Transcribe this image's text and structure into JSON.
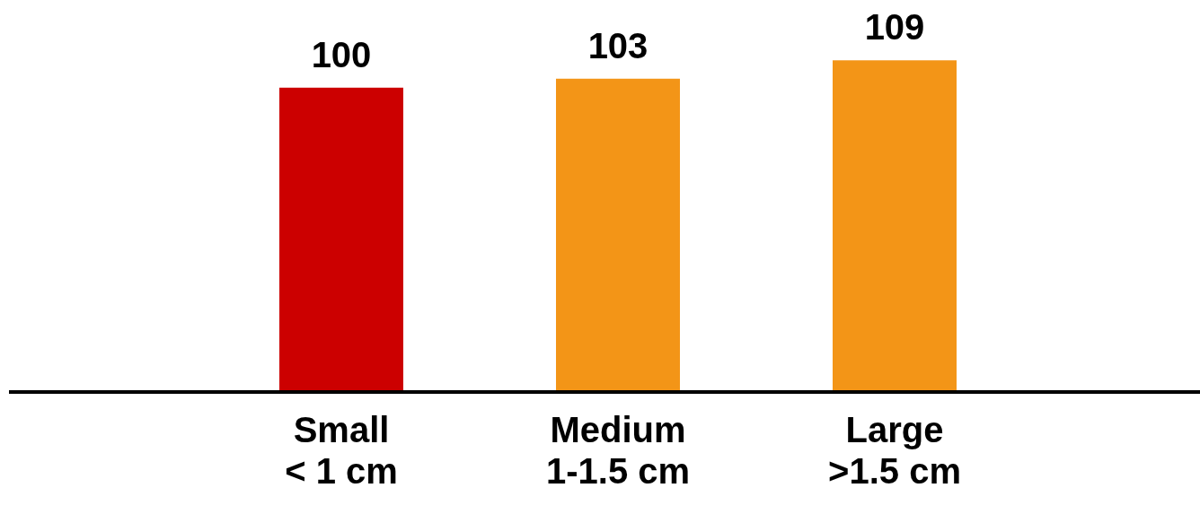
{
  "chart_data": {
    "type": "bar",
    "categories": [
      "Small\n< 1 cm",
      "Medium\n1-1.5 cm",
      "Large\n>1.5 cm"
    ],
    "values": [
      100,
      103,
      109
    ],
    "colors": [
      "#cc0000",
      "#f39517",
      "#f39517"
    ],
    "tick_labels": "x",
    "data_labels": true,
    "grid": false,
    "legend": false
  }
}
